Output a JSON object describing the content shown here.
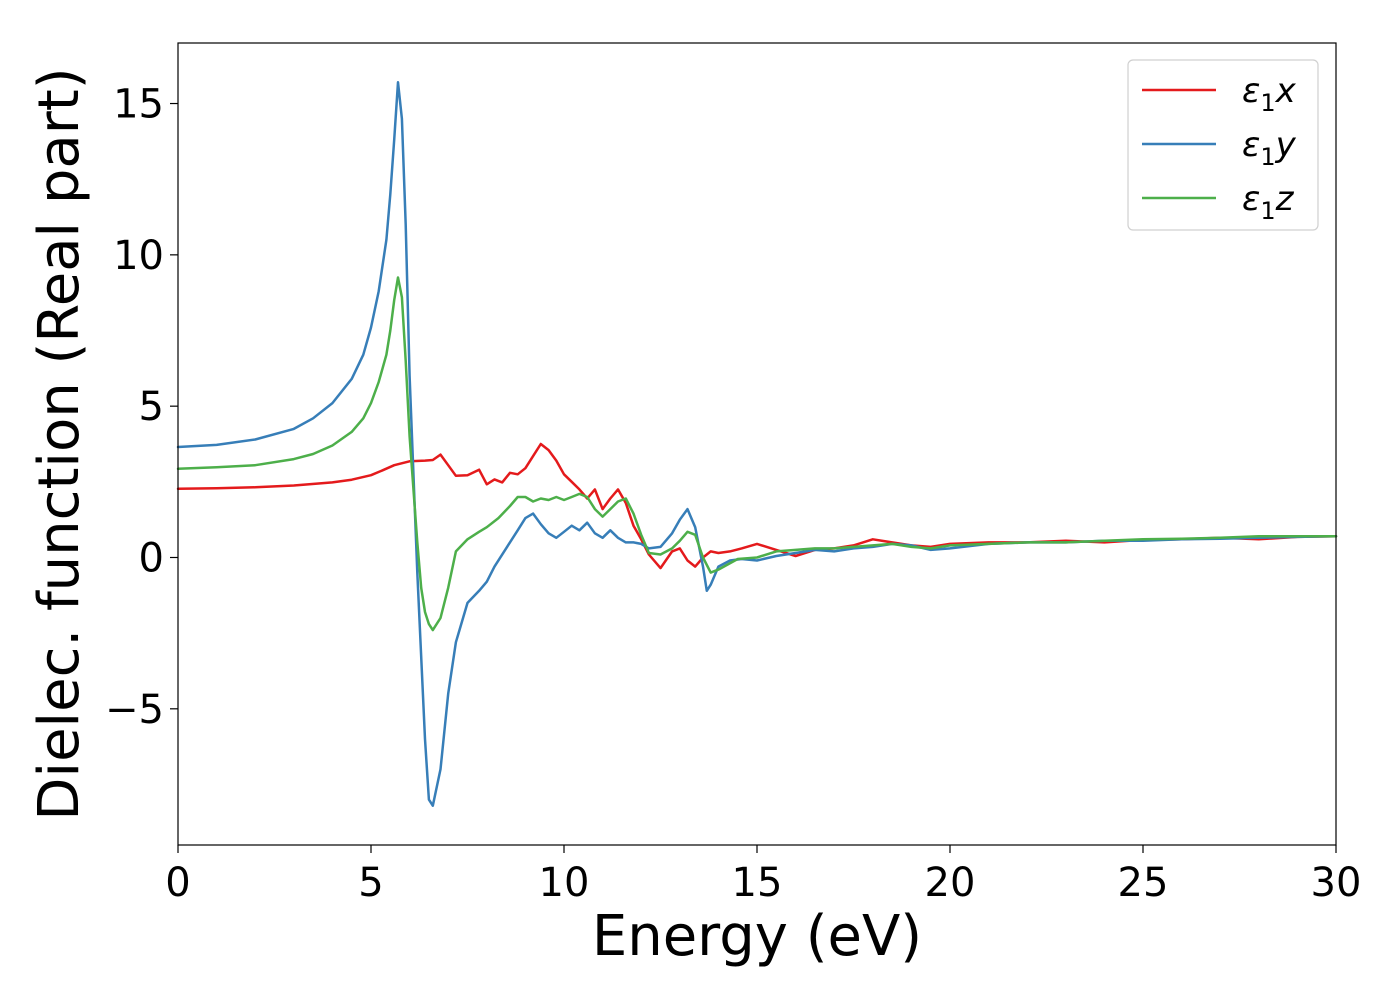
{
  "chart_data": {
    "type": "line",
    "title": "",
    "xlabel": "Energy (eV)",
    "ylabel": "Dielec. function (Real part)",
    "xlim": [
      0,
      30
    ],
    "ylim": [
      -9.5,
      17
    ],
    "xticks": [
      0,
      5,
      10,
      15,
      20,
      25,
      30
    ],
    "xtick_labels": [
      "0",
      "5",
      "10",
      "15",
      "20",
      "25",
      "30"
    ],
    "yticks": [
      -5,
      0,
      5,
      10,
      15
    ],
    "ytick_labels": [
      "−5",
      "0",
      "5",
      "10",
      "15"
    ],
    "grid": false,
    "legend_position": "top-right",
    "series": [
      {
        "name": "ε₁x",
        "legend_base": "ε",
        "legend_sub": "1",
        "legend_var": "x",
        "color": "#e41a1c",
        "x": [
          0,
          1,
          2,
          3,
          4,
          4.5,
          5,
          5.3,
          5.6,
          6.0,
          6.4,
          6.6,
          6.8,
          7.0,
          7.2,
          7.5,
          7.8,
          8.0,
          8.2,
          8.4,
          8.6,
          8.8,
          9.0,
          9.2,
          9.4,
          9.6,
          9.8,
          10.0,
          10.2,
          10.4,
          10.6,
          10.8,
          11.0,
          11.2,
          11.4,
          11.6,
          11.8,
          12.0,
          12.2,
          12.5,
          12.8,
          13.0,
          13.2,
          13.4,
          13.6,
          13.8,
          14.0,
          14.3,
          14.6,
          15.0,
          15.5,
          16.0,
          16.5,
          17.0,
          17.5,
          18.0,
          18.5,
          19.0,
          19.5,
          20.0,
          21,
          22,
          23,
          24,
          25,
          26,
          27,
          28,
          29,
          30
        ],
        "y": [
          2.27,
          2.29,
          2.32,
          2.38,
          2.48,
          2.57,
          2.72,
          2.88,
          3.05,
          3.18,
          3.2,
          3.22,
          3.4,
          3.05,
          2.7,
          2.72,
          2.9,
          2.42,
          2.58,
          2.48,
          2.8,
          2.75,
          2.95,
          3.35,
          3.75,
          3.55,
          3.2,
          2.75,
          2.5,
          2.25,
          1.95,
          2.25,
          1.6,
          1.95,
          2.25,
          1.8,
          1.05,
          0.6,
          0.1,
          -0.35,
          0.2,
          0.3,
          -0.1,
          -0.3,
          0.0,
          0.2,
          0.15,
          0.2,
          0.3,
          0.45,
          0.25,
          0.05,
          0.25,
          0.3,
          0.4,
          0.6,
          0.5,
          0.4,
          0.35,
          0.45,
          0.5,
          0.5,
          0.55,
          0.5,
          0.58,
          0.6,
          0.65,
          0.6,
          0.68,
          0.7
        ]
      },
      {
        "name": "ε₁y",
        "legend_base": "ε",
        "legend_sub": "1",
        "legend_var": "y",
        "color": "#377eb8",
        "x": [
          0,
          1,
          2,
          3,
          3.5,
          4,
          4.5,
          4.8,
          5.0,
          5.2,
          5.4,
          5.5,
          5.6,
          5.7,
          5.8,
          5.9,
          6.0,
          6.2,
          6.4,
          6.5,
          6.6,
          6.8,
          7.0,
          7.2,
          7.5,
          7.8,
          8.0,
          8.2,
          8.5,
          8.8,
          9.0,
          9.2,
          9.4,
          9.6,
          9.8,
          10.0,
          10.2,
          10.4,
          10.6,
          10.8,
          11.0,
          11.2,
          11.4,
          11.6,
          11.8,
          12.0,
          12.2,
          12.5,
          12.8,
          13.0,
          13.2,
          13.4,
          13.6,
          13.7,
          13.8,
          14.0,
          14.3,
          14.6,
          15.0,
          15.5,
          16.0,
          16.5,
          17.0,
          17.5,
          18.0,
          18.5,
          19.0,
          19.5,
          20.0,
          21,
          22,
          23,
          24,
          25,
          26,
          27,
          28,
          29,
          30
        ],
        "y": [
          3.65,
          3.72,
          3.9,
          4.25,
          4.6,
          5.1,
          5.9,
          6.7,
          7.6,
          8.8,
          10.5,
          12.0,
          13.8,
          15.7,
          14.5,
          11.0,
          6.0,
          -0.5,
          -6.0,
          -8.0,
          -8.2,
          -7.0,
          -4.5,
          -2.8,
          -1.5,
          -1.1,
          -0.8,
          -0.3,
          0.3,
          0.9,
          1.3,
          1.45,
          1.1,
          0.8,
          0.65,
          0.85,
          1.05,
          0.9,
          1.15,
          0.8,
          0.65,
          0.9,
          0.65,
          0.5,
          0.5,
          0.45,
          0.3,
          0.35,
          0.8,
          1.25,
          1.6,
          1.0,
          -0.3,
          -1.1,
          -0.9,
          -0.3,
          -0.1,
          -0.05,
          -0.1,
          0.05,
          0.15,
          0.25,
          0.2,
          0.3,
          0.35,
          0.45,
          0.4,
          0.25,
          0.3,
          0.45,
          0.5,
          0.5,
          0.55,
          0.55,
          0.6,
          0.62,
          0.65,
          0.68,
          0.7
        ]
      },
      {
        "name": "ε₁z",
        "legend_base": "ε",
        "legend_sub": "1",
        "legend_var": "z",
        "color": "#4daf4a",
        "x": [
          0,
          1,
          2,
          3,
          3.5,
          4,
          4.5,
          4.8,
          5.0,
          5.2,
          5.4,
          5.5,
          5.6,
          5.7,
          5.8,
          5.9,
          6.0,
          6.2,
          6.3,
          6.4,
          6.5,
          6.6,
          6.8,
          7.0,
          7.2,
          7.5,
          7.8,
          8.0,
          8.3,
          8.6,
          8.8,
          9.0,
          9.2,
          9.4,
          9.6,
          9.8,
          10.0,
          10.2,
          10.4,
          10.6,
          10.8,
          11.0,
          11.2,
          11.4,
          11.6,
          11.8,
          12.0,
          12.2,
          12.5,
          12.8,
          13.0,
          13.2,
          13.4,
          13.6,
          13.8,
          14.0,
          14.5,
          15.0,
          15.5,
          16.0,
          16.5,
          17.0,
          17.5,
          18.0,
          18.5,
          19.0,
          19.5,
          20.0,
          21,
          22,
          23,
          24,
          25,
          26,
          27,
          28,
          29,
          30
        ],
        "y": [
          2.93,
          2.98,
          3.05,
          3.25,
          3.42,
          3.7,
          4.15,
          4.6,
          5.1,
          5.8,
          6.7,
          7.5,
          8.5,
          9.25,
          8.6,
          6.5,
          4.0,
          0.5,
          -1.0,
          -1.8,
          -2.2,
          -2.4,
          -2.0,
          -1.0,
          0.2,
          0.6,
          0.85,
          1.0,
          1.3,
          1.7,
          2.0,
          2.0,
          1.85,
          1.95,
          1.9,
          2.0,
          1.9,
          2.0,
          2.1,
          2.0,
          1.6,
          1.35,
          1.6,
          1.85,
          1.95,
          1.45,
          0.75,
          0.15,
          0.1,
          0.3,
          0.55,
          0.85,
          0.75,
          0.0,
          -0.5,
          -0.4,
          -0.05,
          0.0,
          0.2,
          0.25,
          0.3,
          0.3,
          0.35,
          0.4,
          0.45,
          0.35,
          0.3,
          0.4,
          0.45,
          0.5,
          0.5,
          0.55,
          0.6,
          0.62,
          0.65,
          0.7,
          0.7,
          0.7
        ]
      }
    ]
  }
}
